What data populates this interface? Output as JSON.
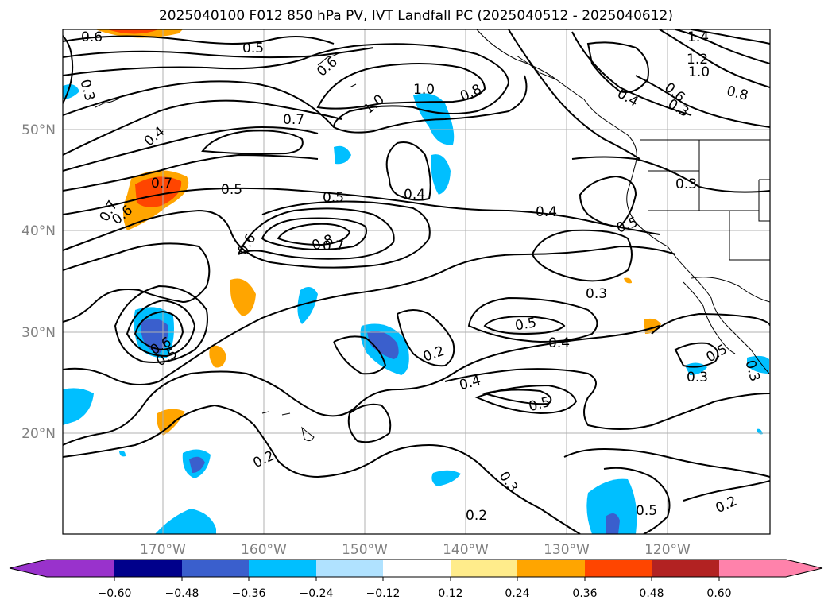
{
  "title": "2025040100 F012 850 hPa PV, IVT Landfall PC (2025040512 - 2025040612)",
  "lat_labels": [
    "50°N",
    "40°N",
    "30°N",
    "20°N"
  ],
  "lon_labels": [
    "170°W",
    "160°W",
    "150°W",
    "140°W",
    "130°W",
    "120°W"
  ],
  "colorbar": {
    "ticks": [
      "−0.60",
      "−0.48",
      "−0.36",
      "−0.24",
      "−0.12",
      "0.12",
      "0.24",
      "0.36",
      "0.48",
      "0.60"
    ],
    "colors": [
      "#9932cc",
      "#8b2fd6",
      "#00008b",
      "#3a5fcd",
      "#00bfff",
      "#b0e2ff",
      "#ffffff",
      "#ffec8b",
      "#ffa500",
      "#ff4500",
      "#b22222",
      "#ff82ab"
    ]
  },
  "contour_labels": [
    "0.6",
    "0.5",
    "0.3",
    "0.4",
    "0.6",
    "1.0",
    "1.0",
    "0.8",
    "1.4",
    "1.2",
    "1.0",
    "0.8",
    "0.4",
    "0.6",
    "0.3",
    "0.7",
    "0.5",
    "0.7",
    "0.7",
    "0.6",
    "0.5",
    "0.4",
    "0.4",
    "0.3",
    "0.5",
    "0.6",
    "0.8",
    "0.7",
    "0.3",
    "0.5",
    "0.4",
    "0.2",
    "0.4",
    "0.5",
    "0.6",
    "0.5",
    "0.3",
    "0.2",
    "0.3",
    "0.2",
    "0.5",
    "0.2",
    "0.3",
    "0.5"
  ],
  "colors": {
    "contour": "#000000",
    "grid": "#b0b0b0",
    "tick_text": "#808080"
  }
}
